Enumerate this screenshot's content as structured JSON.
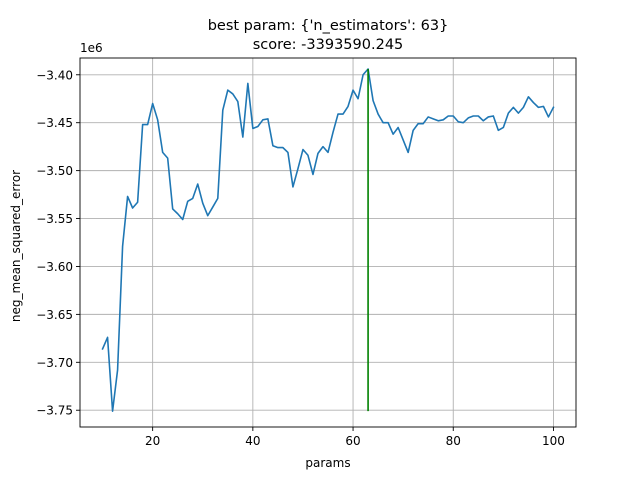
{
  "chart_data": {
    "type": "line",
    "title": "best param: {'n_estimators': 63}",
    "subtitle": "score: -3393590.245",
    "xlabel": "params",
    "ylabel": "neg_mean_squared_error",
    "y_offset_label": "1e6",
    "xlim": [
      5.5,
      104.5
    ],
    "ylim": [
      -3.7675,
      -3.3825
    ],
    "x_ticks": [
      20,
      40,
      60,
      80,
      100
    ],
    "x_tick_labels": [
      "20",
      "40",
      "60",
      "80",
      "100"
    ],
    "y_ticks": [
      -3.75,
      -3.7,
      -3.65,
      -3.6,
      -3.55,
      -3.5,
      -3.45,
      -3.4
    ],
    "y_tick_labels": [
      "−3.75",
      "−3.70",
      "−3.65",
      "−3.60",
      "−3.55",
      "−3.50",
      "−3.45",
      "−3.40"
    ],
    "grid": true,
    "colors": {
      "series": "#1f77b4",
      "best_marker": "#008000"
    },
    "series": [
      {
        "x": [
          10,
          11,
          12,
          13,
          14,
          15,
          16,
          17,
          18,
          19,
          20,
          21,
          22,
          23,
          24,
          25,
          26,
          27,
          28,
          29,
          30,
          31,
          32,
          33,
          34,
          35,
          36,
          37,
          38,
          39,
          40,
          41,
          42,
          43,
          44,
          45,
          46,
          47,
          48,
          49,
          50,
          51,
          52,
          53,
          54,
          55,
          56,
          57,
          58,
          59,
          60,
          61,
          62,
          63,
          64,
          65,
          66,
          67,
          68,
          69,
          70,
          71,
          72,
          73,
          74,
          75,
          76,
          77,
          78,
          79,
          80,
          81,
          82,
          83,
          84,
          85,
          86,
          87,
          88,
          89,
          90,
          91,
          92,
          93,
          94,
          95,
          96,
          97,
          98,
          99,
          100
        ],
        "values": [
          -3.686,
          -3.674,
          -3.751,
          -3.708,
          -3.579,
          -3.527,
          -3.539,
          -3.533,
          -3.452,
          -3.452,
          -3.43,
          -3.447,
          -3.481,
          -3.487,
          -3.54,
          -3.545,
          -3.551,
          -3.532,
          -3.529,
          -3.514,
          -3.534,
          -3.547,
          -3.538,
          -3.529,
          -3.437,
          -3.416,
          -3.42,
          -3.428,
          -3.465,
          -3.409,
          -3.456,
          -3.454,
          -3.447,
          -3.446,
          -3.474,
          -3.476,
          -3.476,
          -3.481,
          -3.517,
          -3.498,
          -3.478,
          -3.484,
          -3.504,
          -3.482,
          -3.475,
          -3.481,
          -3.46,
          -3.441,
          -3.441,
          -3.433,
          -3.416,
          -3.425,
          -3.4,
          -3.394,
          -3.427,
          -3.441,
          -3.45,
          -3.45,
          -3.462,
          -3.455,
          -3.468,
          -3.481,
          -3.458,
          -3.451,
          -3.451,
          -3.444,
          -3.446,
          -3.448,
          -3.447,
          -3.443,
          -3.443,
          -3.449,
          -3.45,
          -3.445,
          -3.443,
          -3.443,
          -3.448,
          -3.444,
          -3.443,
          -3.458,
          -3.455,
          -3.44,
          -3.434,
          -3.44,
          -3.434,
          -3.423,
          -3.429,
          -3.434,
          -3.433,
          -3.444,
          -3.434
        ]
      }
    ],
    "best_line": {
      "x": 63,
      "y_start": -3.751,
      "y_end": -3.394
    }
  }
}
